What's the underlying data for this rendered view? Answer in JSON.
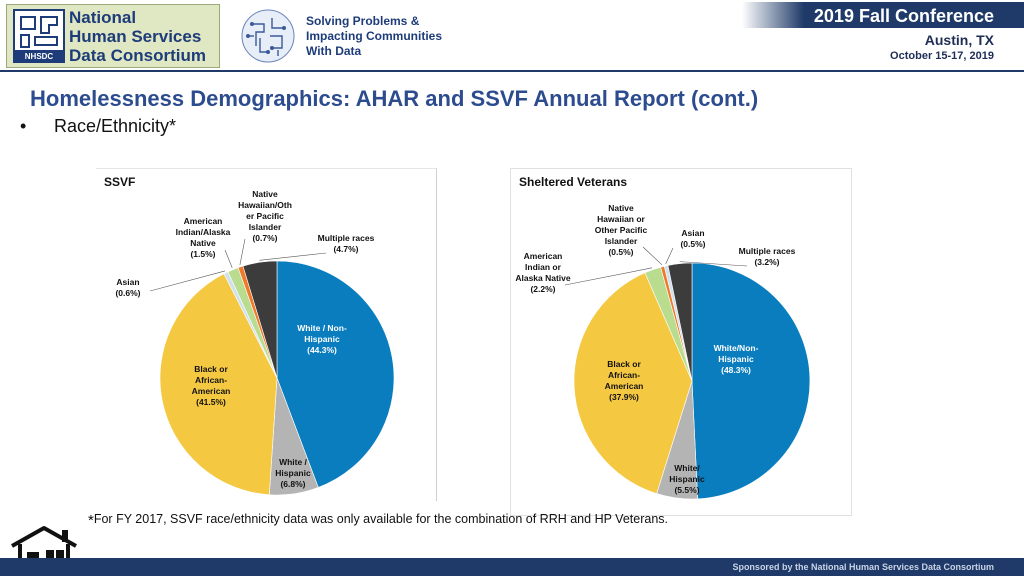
{
  "header": {
    "logo_lines": [
      "National",
      "Human Services",
      "Data Consortium"
    ],
    "logo_badge": "NHSDC",
    "tagline_lines": [
      "Solving Problems &",
      "Impacting Communities",
      "With Data"
    ],
    "conference_title": "2019 Fall Conference",
    "conference_city": "Austin, TX",
    "conference_dates": "October 15-17, 2019"
  },
  "slide": {
    "title": "Homelessness Demographics:  AHAR and SSVF Annual Report (cont.)",
    "bullet": "Race/Ethnicity*"
  },
  "colors": {
    "white_non_hispanic": "#0a7dbf",
    "white_hispanic": "#b4b4b4",
    "black": "#f5c842",
    "asian": "#cfe0ee",
    "american_indian": "#b9dc8f",
    "pacific_islander": "#f07a2a",
    "multiple": "#3c3c3c",
    "header_navy": "#1f3a68",
    "title_blue": "#2d4c8f"
  },
  "chart_data": [
    {
      "type": "pie",
      "title": "SSVF",
      "slices": [
        {
          "label": "White / Non-Hispanic",
          "value": 44.3,
          "value_text": "(44.3%)",
          "color": "#0a7dbf",
          "lines": [
            "White / Non-",
            "Hispanic",
            "(44.3%)"
          ]
        },
        {
          "label": "White / Hispanic",
          "value": 6.8,
          "value_text": "(6.8%)",
          "color": "#b4b4b4",
          "lines": [
            "White /",
            "Hispanic",
            "(6.8%)"
          ]
        },
        {
          "label": "Black or African-American",
          "value": 41.5,
          "value_text": "(41.5%)",
          "color": "#f5c842",
          "lines": [
            "Black or",
            "African-",
            "American",
            "(41.5%)"
          ]
        },
        {
          "label": "Asian",
          "value": 0.6,
          "value_text": "(0.6%)",
          "color": "#cfe0ee",
          "lines": [
            "Asian",
            "(0.6%)"
          ]
        },
        {
          "label": "American Indian/Alaska Native",
          "value": 1.5,
          "value_text": "(1.5%)",
          "color": "#b9dc8f",
          "lines": [
            "American",
            "Indian/Alaska",
            "Native",
            "(1.5%)"
          ]
        },
        {
          "label": "Native Hawaiian/Other Pacific Islander",
          "value": 0.7,
          "value_text": "(0.7%)",
          "color": "#f07a2a",
          "lines": [
            "Native",
            "Hawaiian/Oth",
            "er Pacific",
            "Islander",
            "(0.7%)"
          ]
        },
        {
          "label": "Multiple races",
          "value": 4.7,
          "value_text": "(4.7%)",
          "color": "#3c3c3c",
          "lines": [
            "Multiple races",
            "(4.7%)"
          ]
        }
      ]
    },
    {
      "type": "pie",
      "title": "Sheltered Veterans",
      "slices": [
        {
          "label": "White/Non-Hispanic",
          "value": 48.3,
          "value_text": "(48.3%)",
          "color": "#0a7dbf",
          "lines": [
            "White/Non-",
            "Hispanic",
            "(48.3%)"
          ]
        },
        {
          "label": "White/Hispanic",
          "value": 5.5,
          "value_text": "(5.5%)",
          "color": "#b4b4b4",
          "lines": [
            "White/",
            "Hispanic",
            "(5.5%)"
          ]
        },
        {
          "label": "Black or African-American",
          "value": 37.9,
          "value_text": "(37.9%)",
          "color": "#f5c842",
          "lines": [
            "Black or",
            "African-",
            "American",
            "(37.9%)"
          ]
        },
        {
          "label": "American Indian or Alaska Native",
          "value": 2.2,
          "value_text": "(2.2%)",
          "color": "#b9dc8f",
          "lines": [
            "American",
            "Indian or",
            "Alaska Native",
            "(2.2%)"
          ]
        },
        {
          "label": "Native Hawaiian or Other Pacific Islander",
          "value": 0.5,
          "value_text": "(0.5%)",
          "color": "#f07a2a",
          "lines": [
            "Native",
            "Hawaiian or",
            "Other Pacific",
            "Islander",
            "(0.5%)"
          ]
        },
        {
          "label": "Asian",
          "value": 0.5,
          "value_text": "(0.5%)",
          "color": "#cfe0ee",
          "lines": [
            "Asian",
            "(0.5%)"
          ]
        },
        {
          "label": "Multiple races",
          "value": 3.2,
          "value_text": "(3.2%)",
          "color": "#3c3c3c",
          "lines": [
            "Multiple races",
            "(3.2%)"
          ]
        }
      ]
    }
  ],
  "footnote": {
    "star": "*",
    "text": "For FY 2017, SSVF race/ethnicity data was only available for the combination of RRH and HP Veterans."
  },
  "footer": {
    "sponsor": "Sponsored by the National Human Services Data Consortium"
  }
}
